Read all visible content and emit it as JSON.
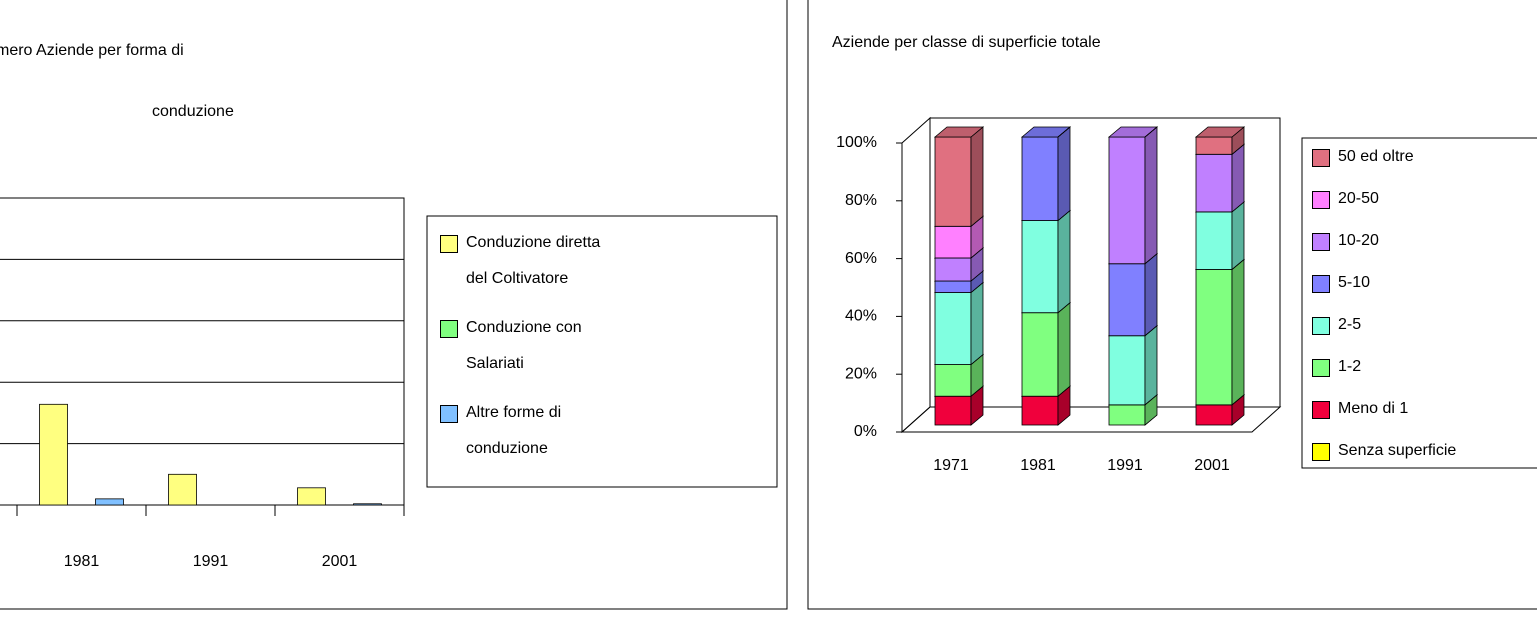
{
  "chart_data": [
    {
      "type": "bar",
      "title_lines": [
        "mero Aziende per forma di",
        "conduzione"
      ],
      "categories": [
        "1981",
        "1991",
        "2001"
      ],
      "series": [
        {
          "name": "Conduzione diretta del Coltivatore",
          "color": "#ffff80",
          "values": [
            1.64,
            0.5,
            0.28
          ]
        },
        {
          "name": "Conduzione con Salariati",
          "color": "#80ff80",
          "values": [
            0,
            0,
            0
          ]
        },
        {
          "name": "Altre forme di conduzione",
          "color": "#80c0ff",
          "values": [
            0.1,
            0,
            0.02
          ]
        }
      ],
      "ylim": [
        0,
        5
      ],
      "yticks": [
        0,
        1,
        2,
        3,
        4,
        5
      ],
      "grid": true
    },
    {
      "type": "bar",
      "stacked": true,
      "three_d": true,
      "title": "Aziende per classe di superficie totale",
      "categories": [
        "1971",
        "1981",
        "1991",
        "2001"
      ],
      "series": [
        {
          "name": "Senza superficie",
          "color": "#ffff00",
          "values": [
            0,
            0,
            0,
            0
          ]
        },
        {
          "name": "Meno di 1",
          "color": "#f0003c",
          "values": [
            10,
            10,
            0,
            7
          ]
        },
        {
          "name": "1-2",
          "color": "#80ff80",
          "values": [
            11,
            29,
            7,
            47
          ]
        },
        {
          "name": "2-5",
          "color": "#80ffe0",
          "values": [
            25,
            32,
            24,
            20
          ]
        },
        {
          "name": "5-10",
          "color": "#8080ff",
          "values": [
            4,
            29,
            25,
            0
          ]
        },
        {
          "name": "10-20",
          "color": "#c080ff",
          "values": [
            8,
            0,
            44,
            20
          ]
        },
        {
          "name": "20-50",
          "color": "#ff80ff",
          "values": [
            11,
            0,
            0,
            0
          ]
        },
        {
          "name": "50 ed oltre",
          "color": "#e07080",
          "values": [
            31,
            0,
            0,
            6
          ]
        }
      ],
      "ylim": [
        0,
        100
      ],
      "yticks": [
        {
          "value": 0,
          "label": "0%"
        },
        {
          "value": 20,
          "label": "20%"
        },
        {
          "value": 40,
          "label": "40%"
        },
        {
          "value": 60,
          "label": "60%"
        },
        {
          "value": 80,
          "label": "80%"
        },
        {
          "value": 100,
          "label": "100%"
        }
      ]
    }
  ]
}
